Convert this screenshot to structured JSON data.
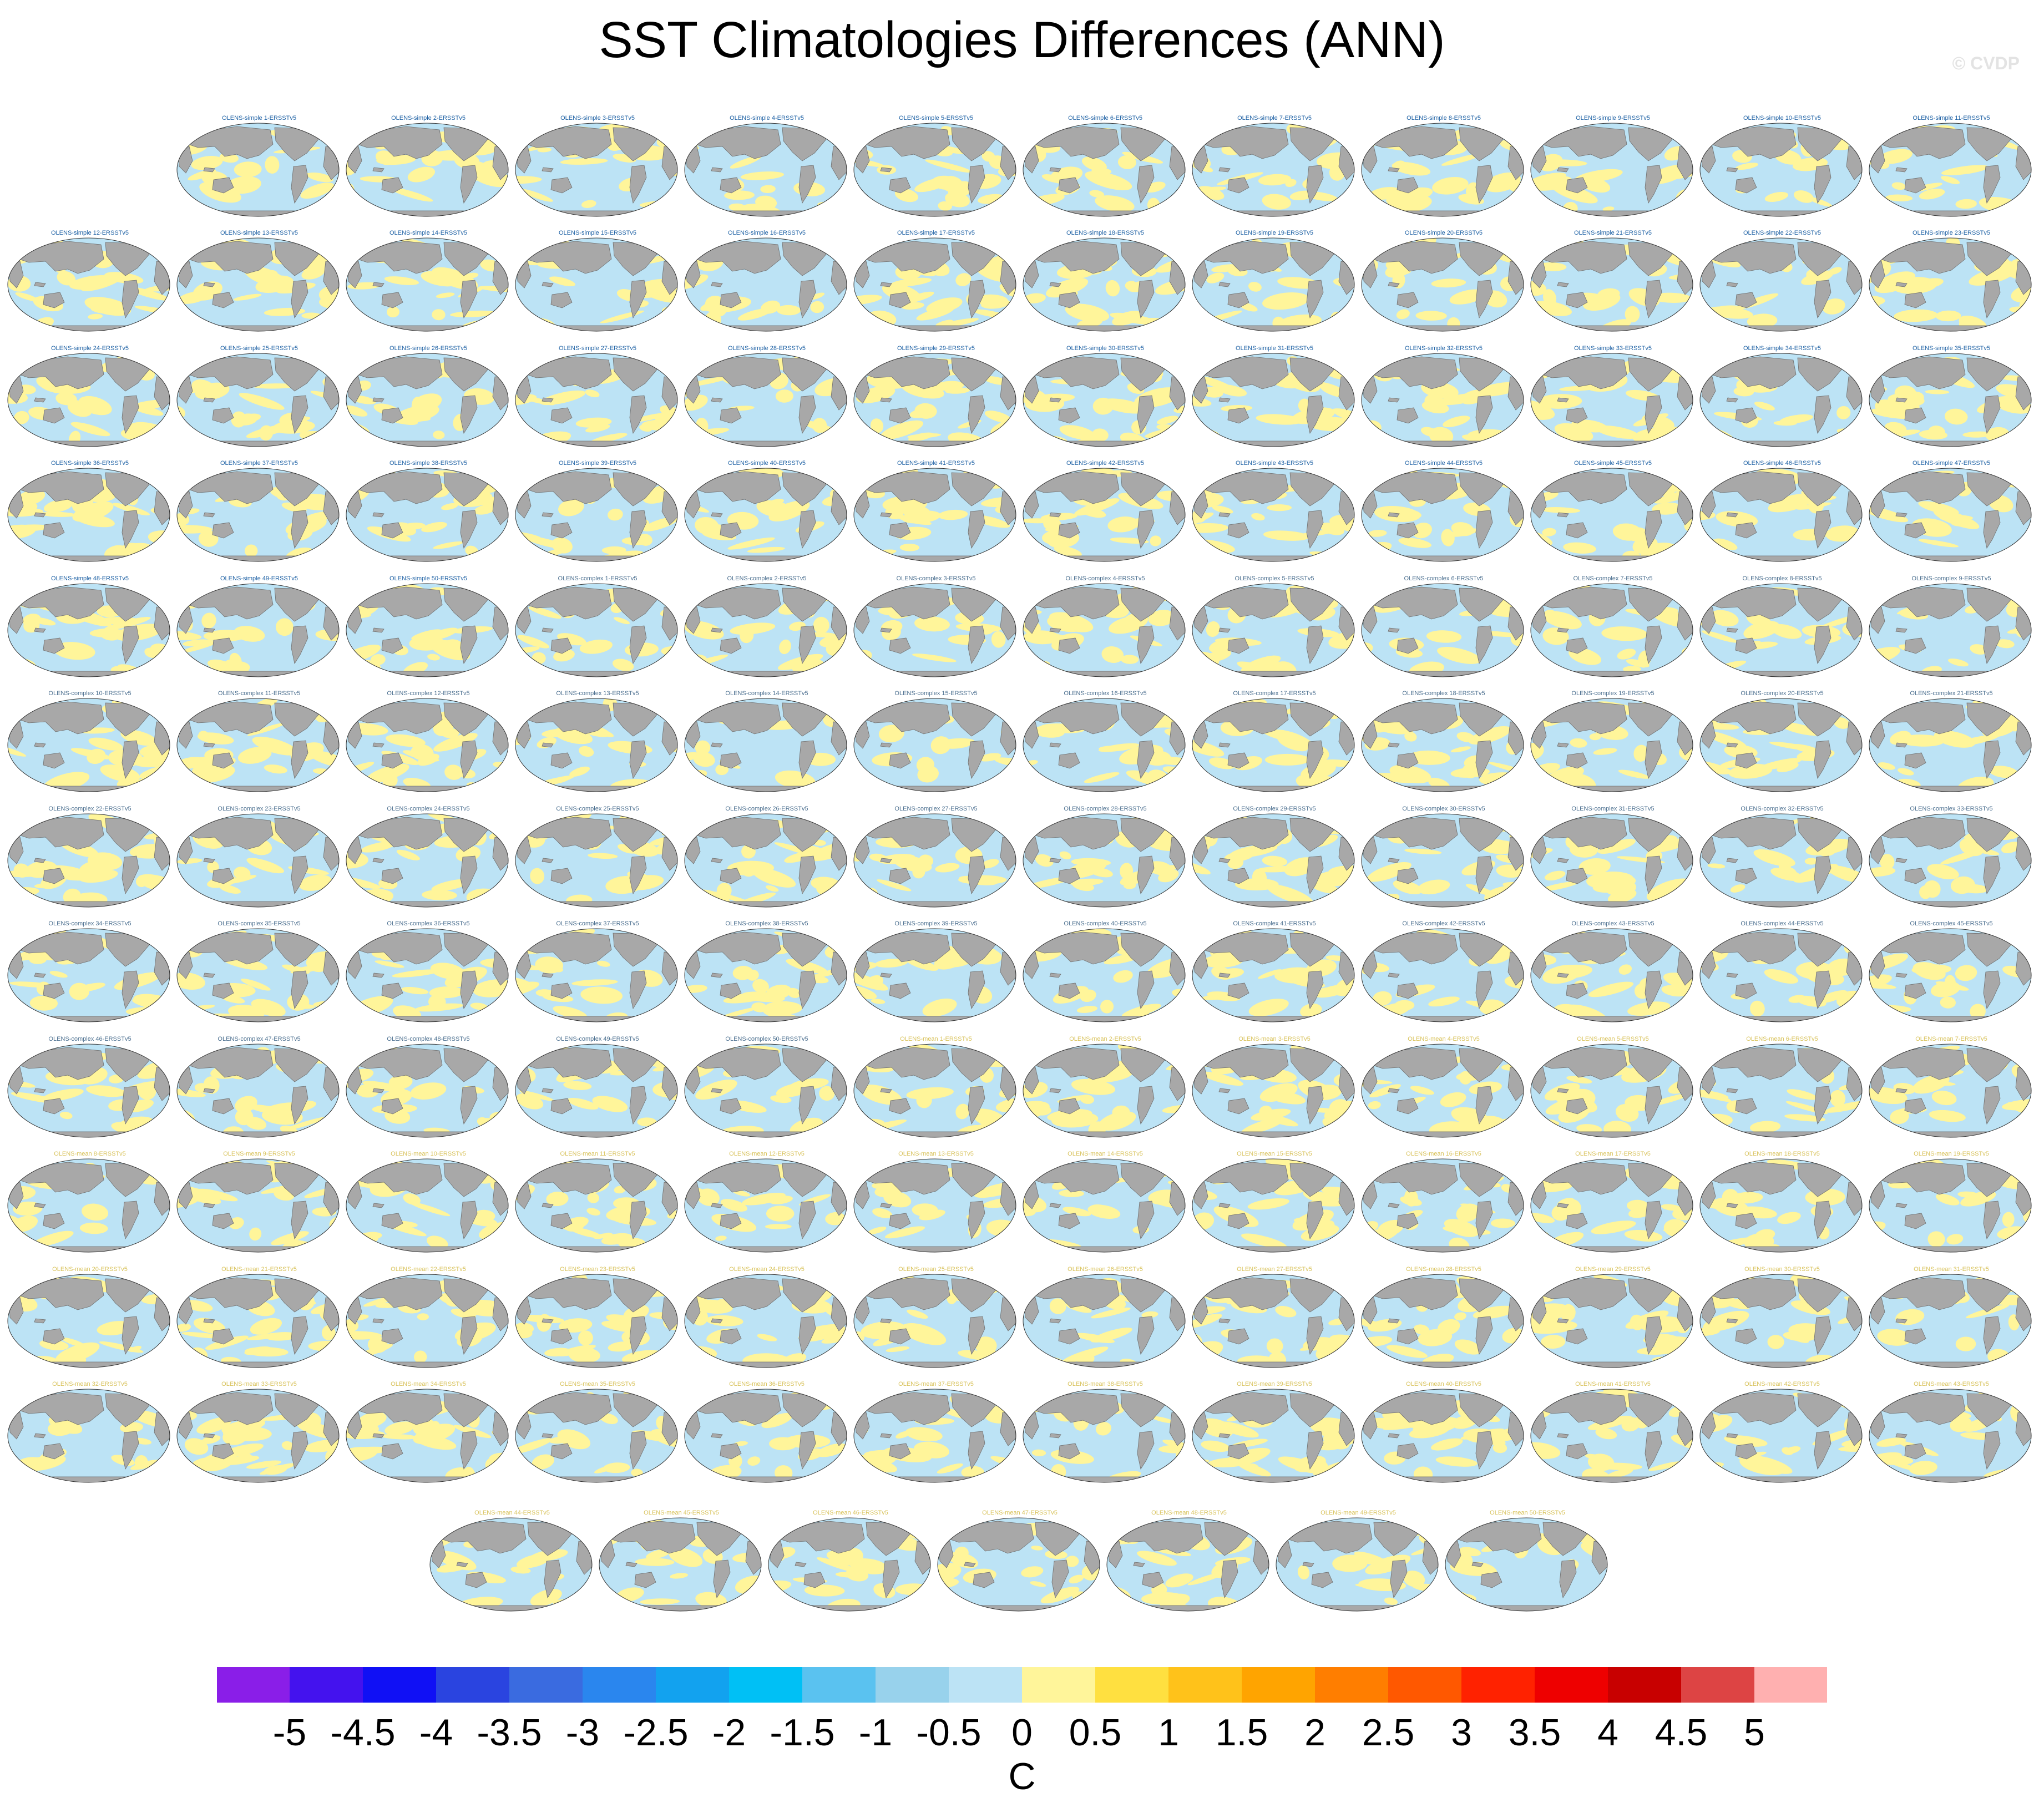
{
  "title": "SST Climatologies Differences (ANN)",
  "watermark": "© CVDP",
  "colors": {
    "land": "#a8a8a8",
    "ocean_negative": "#bce3f5",
    "ocean_positive": "#fff59a",
    "label_simple": "#1b5fa3",
    "label_complex": "#4b6f8f",
    "label_mean": "#d8c25a"
  },
  "panels": {
    "simple": [
      "OLENS-simple 1-ERSSTv5",
      "OLENS-simple 2-ERSSTv5",
      "OLENS-simple 3-ERSSTv5",
      "OLENS-simple 4-ERSSTv5",
      "OLENS-simple 5-ERSSTv5",
      "OLENS-simple 6-ERSSTv5",
      "OLENS-simple 7-ERSSTv5",
      "OLENS-simple 8-ERSSTv5",
      "OLENS-simple 9-ERSSTv5",
      "OLENS-simple 10-ERSSTv5",
      "OLENS-simple 11-ERSSTv5",
      "OLENS-simple 12-ERSSTv5",
      "OLENS-simple 13-ERSSTv5",
      "OLENS-simple 14-ERSSTv5",
      "OLENS-simple 15-ERSSTv5",
      "OLENS-simple 16-ERSSTv5",
      "OLENS-simple 17-ERSSTv5",
      "OLENS-simple 18-ERSSTv5",
      "OLENS-simple 19-ERSSTv5",
      "OLENS-simple 20-ERSSTv5",
      "OLENS-simple 21-ERSSTv5",
      "OLENS-simple 22-ERSSTv5",
      "OLENS-simple 23-ERSSTv5",
      "OLENS-simple 24-ERSSTv5",
      "OLENS-simple 25-ERSSTv5",
      "OLENS-simple 26-ERSSTv5",
      "OLENS-simple 27-ERSSTv5",
      "OLENS-simple 28-ERSSTv5",
      "OLENS-simple 29-ERSSTv5",
      "OLENS-simple 30-ERSSTv5",
      "OLENS-simple 31-ERSSTv5",
      "OLENS-simple 32-ERSSTv5",
      "OLENS-simple 33-ERSSTv5",
      "OLENS-simple 34-ERSSTv5",
      "OLENS-simple 35-ERSSTv5",
      "OLENS-simple 36-ERSSTv5",
      "OLENS-simple 37-ERSSTv5",
      "OLENS-simple 38-ERSSTv5",
      "OLENS-simple 39-ERSSTv5",
      "OLENS-simple 40-ERSSTv5",
      "OLENS-simple 41-ERSSTv5",
      "OLENS-simple 42-ERSSTv5",
      "OLENS-simple 43-ERSSTv5",
      "OLENS-simple 44-ERSSTv5",
      "OLENS-simple 45-ERSSTv5",
      "OLENS-simple 46-ERSSTv5",
      "OLENS-simple 47-ERSSTv5",
      "OLENS-simple 48-ERSSTv5",
      "OLENS-simple 49-ERSSTv5",
      "OLENS-simple 50-ERSSTv5"
    ],
    "complex": [
      "OLENS-complex 1-ERSSTv5",
      "OLENS-complex 2-ERSSTv5",
      "OLENS-complex 3-ERSSTv5",
      "OLENS-complex 4-ERSSTv5",
      "OLENS-complex 5-ERSSTv5",
      "OLENS-complex 6-ERSSTv5",
      "OLENS-complex 7-ERSSTv5",
      "OLENS-complex 8-ERSSTv5",
      "OLENS-complex 9-ERSSTv5",
      "OLENS-complex 10-ERSSTv5",
      "OLENS-complex 11-ERSSTv5",
      "OLENS-complex 12-ERSSTv5",
      "OLENS-complex 13-ERSSTv5",
      "OLENS-complex 14-ERSSTv5",
      "OLENS-complex 15-ERSSTv5",
      "OLENS-complex 16-ERSSTv5",
      "OLENS-complex 17-ERSSTv5",
      "OLENS-complex 18-ERSSTv5",
      "OLENS-complex 19-ERSSTv5",
      "OLENS-complex 20-ERSSTv5",
      "OLENS-complex 21-ERSSTv5",
      "OLENS-complex 22-ERSSTv5",
      "OLENS-complex 23-ERSSTv5",
      "OLENS-complex 24-ERSSTv5",
      "OLENS-complex 25-ERSSTv5",
      "OLENS-complex 26-ERSSTv5",
      "OLENS-complex 27-ERSSTv5",
      "OLENS-complex 28-ERSSTv5",
      "OLENS-complex 29-ERSSTv5",
      "OLENS-complex 30-ERSSTv5",
      "OLENS-complex 31-ERSSTv5",
      "OLENS-complex 32-ERSSTv5",
      "OLENS-complex 33-ERSSTv5",
      "OLENS-complex 34-ERSSTv5",
      "OLENS-complex 35-ERSSTv5",
      "OLENS-complex 36-ERSSTv5",
      "OLENS-complex 37-ERSSTv5",
      "OLENS-complex 38-ERSSTv5",
      "OLENS-complex 39-ERSSTv5",
      "OLENS-complex 40-ERSSTv5",
      "OLENS-complex 41-ERSSTv5",
      "OLENS-complex 42-ERSSTv5",
      "OLENS-complex 43-ERSSTv5",
      "OLENS-complex 44-ERSSTv5",
      "OLENS-complex 45-ERSSTv5",
      "OLENS-complex 46-ERSSTv5",
      "OLENS-complex 47-ERSSTv5",
      "OLENS-complex 48-ERSSTv5",
      "OLENS-complex 49-ERSSTv5",
      "OLENS-complex 50-ERSSTv5"
    ],
    "mean": [
      "OLENS-mean 1-ERSSTv5",
      "OLENS-mean 2-ERSSTv5",
      "OLENS-mean 3-ERSSTv5",
      "OLENS-mean 4-ERSSTv5",
      "OLENS-mean 5-ERSSTv5",
      "OLENS-mean 6-ERSSTv5",
      "OLENS-mean 7-ERSSTv5",
      "OLENS-mean 8-ERSSTv5",
      "OLENS-mean 9-ERSSTv5",
      "OLENS-mean 10-ERSSTv5",
      "OLENS-mean 11-ERSSTv5",
      "OLENS-mean 12-ERSSTv5",
      "OLENS-mean 13-ERSSTv5",
      "OLENS-mean 14-ERSSTv5",
      "OLENS-mean 15-ERSSTv5",
      "OLENS-mean 16-ERSSTv5",
      "OLENS-mean 17-ERSSTv5",
      "OLENS-mean 18-ERSSTv5",
      "OLENS-mean 19-ERSSTv5",
      "OLENS-mean 20-ERSSTv5",
      "OLENS-mean 21-ERSSTv5",
      "OLENS-mean 22-ERSSTv5",
      "OLENS-mean 23-ERSSTv5",
      "OLENS-mean 24-ERSSTv5",
      "OLENS-mean 25-ERSSTv5",
      "OLENS-mean 26-ERSSTv5",
      "OLENS-mean 27-ERSSTv5",
      "OLENS-mean 28-ERSSTv5",
      "OLENS-mean 29-ERSSTv5",
      "OLENS-mean 30-ERSSTv5",
      "OLENS-mean 31-ERSSTv5",
      "OLENS-mean 32-ERSSTv5",
      "OLENS-mean 33-ERSSTv5",
      "OLENS-mean 34-ERSSTv5",
      "OLENS-mean 35-ERSSTv5",
      "OLENS-mean 36-ERSSTv5",
      "OLENS-mean 37-ERSSTv5",
      "OLENS-mean 38-ERSSTv5",
      "OLENS-mean 39-ERSSTv5",
      "OLENS-mean 40-ERSSTv5",
      "OLENS-mean 41-ERSSTv5",
      "OLENS-mean 42-ERSSTv5",
      "OLENS-mean 43-ERSSTv5",
      "OLENS-mean 44-ERSSTv5",
      "OLENS-mean 45-ERSSTv5",
      "OLENS-mean 46-ERSSTv5",
      "OLENS-mean 47-ERSSTv5",
      "OLENS-mean 48-ERSSTv5",
      "OLENS-mean 49-ERSSTv5",
      "OLENS-mean 50-ERSSTv5"
    ]
  },
  "chart_data": {
    "type": "heatmap",
    "title": "SST Climatologies Differences (ANN)",
    "panel_count": 150,
    "projection": "Robinson",
    "colorbar": {
      "label": "C",
      "ticks": [
        "-5",
        "-4.5",
        "-4",
        "-3.5",
        "-3",
        "-2.5",
        "-2",
        "-1.5",
        "-1",
        "-0.5",
        "0",
        "0.5",
        "1",
        "1.5",
        "2",
        "2.5",
        "3",
        "3.5",
        "4",
        "4.5",
        "5"
      ],
      "colors": [
        "#8a1ee8",
        "#4412ee",
        "#1010f5",
        "#2a44e0",
        "#3a6be0",
        "#2a86ee",
        "#12a2ef",
        "#00c0f5",
        "#5ac2f0",
        "#98d2ec",
        "#bce3f5",
        "#fff59a",
        "#ffe040",
        "#ffc21a",
        "#ffa400",
        "#ff7e00",
        "#ff5800",
        "#ff2200",
        "#ee0000",
        "#c80000",
        "#dd4444",
        "#ffb0b0"
      ],
      "range": [
        -5,
        5
      ]
    }
  }
}
